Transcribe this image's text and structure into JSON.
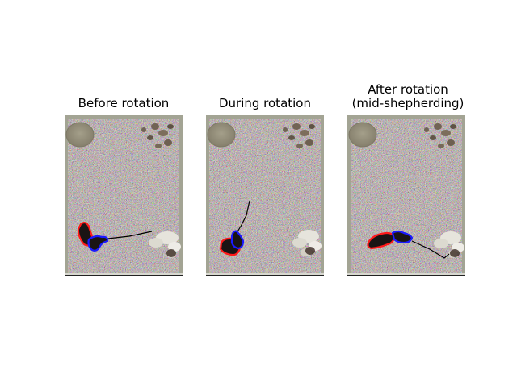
{
  "figure": {
    "panels": [
      {
        "title": "Before rotation"
      },
      {
        "title": "During rotation"
      },
      {
        "title": "After rotation\n(mid-shepherding)"
      }
    ],
    "colors": {
      "outline_red": "#ff1a1a",
      "outline_blue": "#1a1aff",
      "animal_fill": "#1a1414",
      "substrate": "#8a7f6e",
      "arena_edge": "#a3a494",
      "shelter": "#8e8a78",
      "gravel": "#6e6050",
      "cotton": "#e6e4dc",
      "trail": "#000000"
    }
  }
}
